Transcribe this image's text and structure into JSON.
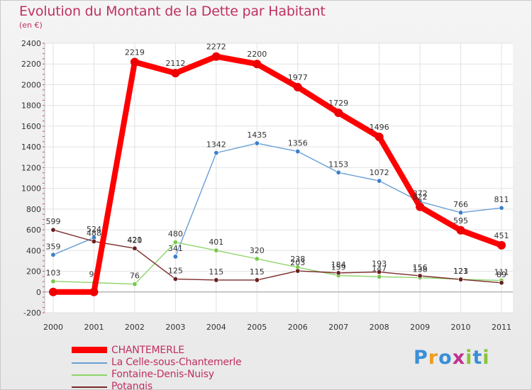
{
  "title": "Evolution du Montant de la Dette par Habitant",
  "subtitle": "(en €)",
  "logo": {
    "letters": [
      "P",
      "r",
      "o",
      "x",
      "i",
      "t",
      "i"
    ],
    "colors": [
      "#3a8fd8",
      "#f29b1f",
      "#3a8fd8",
      "#c03090",
      "#8ac43a",
      "#3a8fd8",
      "#8ac43a"
    ]
  },
  "chart_data": {
    "type": "line",
    "x": [
      2000,
      2001,
      2002,
      2003,
      2004,
      2005,
      2006,
      2007,
      2008,
      2009,
      2010,
      2011
    ],
    "ylim": [
      -200,
      2400
    ],
    "yticks": [
      -200,
      0,
      200,
      400,
      600,
      800,
      1000,
      1200,
      1400,
      1600,
      1800,
      2000,
      2200,
      2400
    ],
    "grid": true,
    "legend_position": "bottom-left",
    "series": [
      {
        "name": "La Celle-sous-Chantemerle",
        "color": "#6a9fd4",
        "marker": "#3b80c8",
        "values": [
          359,
          524,
          null,
          341,
          1342,
          1435,
          1356,
          1153,
          1072,
          872,
          766,
          811
        ],
        "labels": [
          "359",
          "524",
          "",
          "341",
          "1342",
          "1435",
          "1356",
          "1153",
          "1072",
          "872",
          "766",
          "811"
        ]
      },
      {
        "name": "Fontaine-Denis-Nuisy",
        "color": "#8ed46a",
        "marker": "#76c94a",
        "values": [
          103,
          90,
          76,
          480,
          401,
          320,
          238,
          159,
          147,
          138,
          123,
          111
        ],
        "labels": [
          "103",
          "90",
          "76",
          "480",
          "401",
          "320",
          "238",
          "159",
          "147",
          "138",
          "123",
          "111"
        ]
      },
      {
        "name": "Potangis",
        "color": "#7a2a2a",
        "marker": "#6a2020",
        "values": [
          599,
          488,
          421,
          125,
          115,
          115,
          203,
          184,
          193,
          156,
          121,
          89
        ],
        "labels": [
          "599",
          "488",
          "421",
          "125",
          "115",
          "115",
          "203",
          "184",
          "193",
          "156",
          "121",
          "89"
        ]
      },
      {
        "name": "CHANTEMERLE",
        "color": "#ff0000",
        "marker": "#ee0000",
        "values": [
          0,
          0,
          2219,
          2112,
          2272,
          2200,
          1977,
          1729,
          1496,
          822,
          595,
          451
        ],
        "labels": [
          "",
          "",
          "2219",
          "2112",
          "2272",
          "2200",
          "1977",
          "1729",
          "1496",
          "822",
          "595",
          "451"
        ]
      }
    ],
    "extra_labels": [
      {
        "x": 2002,
        "y": 420,
        "text": "420"
      }
    ],
    "legend": [
      {
        "name": "CHANTEMERLE",
        "color": "#ff0000"
      },
      {
        "name": "La Celle-sous-Chantemerle",
        "color": "#6a9fd4"
      },
      {
        "name": "Fontaine-Denis-Nuisy",
        "color": "#8ed46a"
      },
      {
        "name": "Potangis",
        "color": "#7a2a2a"
      }
    ]
  }
}
